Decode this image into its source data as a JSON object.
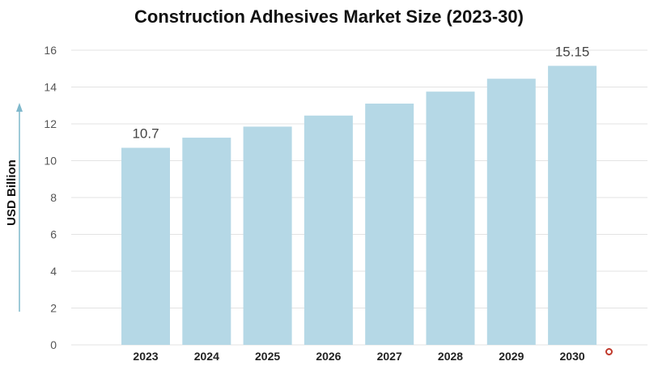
{
  "chart_data": {
    "type": "bar",
    "title": "Construction Adhesives Market Size (2023-30)",
    "ylabel": "USD Billion",
    "xlabel": "",
    "categories": [
      "2023",
      "2024",
      "2025",
      "2026",
      "2027",
      "2028",
      "2029",
      "2030"
    ],
    "values": [
      10.7,
      11.25,
      11.85,
      12.45,
      13.1,
      13.75,
      14.45,
      15.15
    ],
    "data_labels": {
      "2023": "10.7",
      "2030": "15.15"
    },
    "ylim": [
      0,
      16
    ],
    "yticks": [
      0,
      2,
      4,
      6,
      8,
      10,
      12,
      14,
      16
    ],
    "grid": true,
    "legend": "none",
    "bar_color": "#b5d8e6",
    "axis_arrow_color": "#7fb8cc"
  },
  "logo": {
    "name": "logo-stratview-research"
  }
}
